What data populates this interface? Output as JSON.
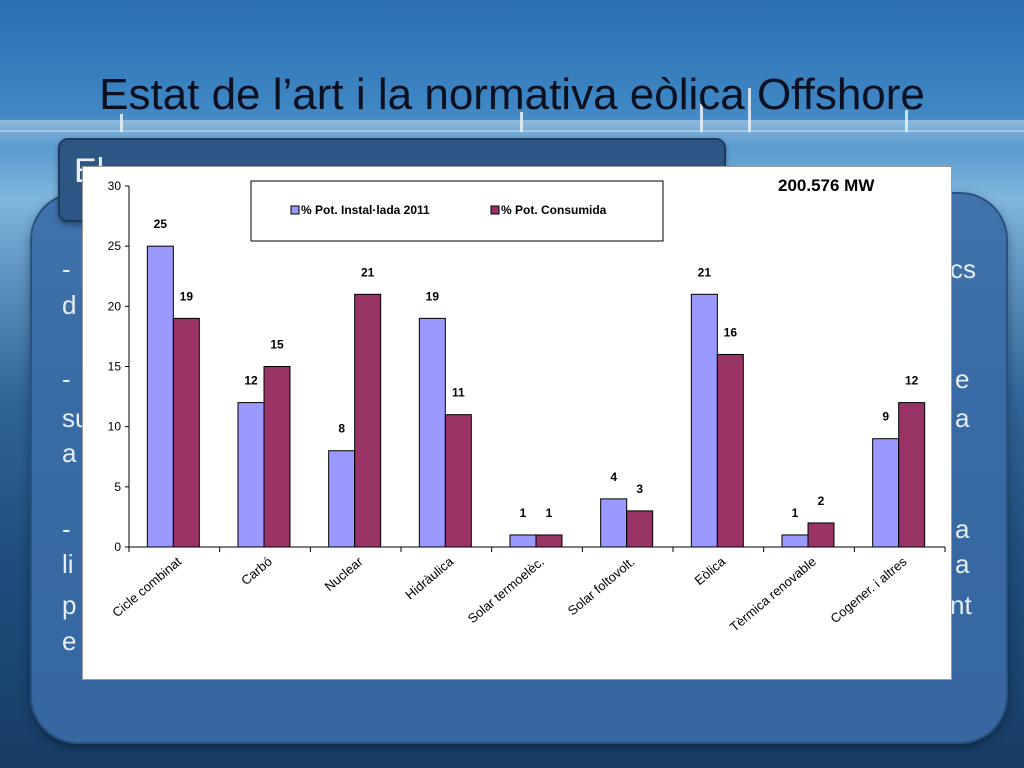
{
  "slide": {
    "title": "Estat de l’art i la normativa eòlica Offshore",
    "header_visible_text": "El",
    "body_fragments": [
      {
        "id": "l1",
        "text": "-"
      },
      {
        "id": "l2",
        "text": "d"
      },
      {
        "id": "l3",
        "text": "-"
      },
      {
        "id": "l4",
        "text": "su"
      },
      {
        "id": "l5",
        "text": "a"
      },
      {
        "id": "l6",
        "text": "-"
      },
      {
        "id": "l7",
        "text": "li"
      },
      {
        "id": "l8",
        "text": "p"
      },
      {
        "id": "l9",
        "text": "e"
      },
      {
        "id": "r1",
        "text": "cs"
      },
      {
        "id": "r2",
        "text": "e"
      },
      {
        "id": "r3",
        "text": "a"
      },
      {
        "id": "r4",
        "text": "a"
      },
      {
        "id": "r5",
        "text": "a"
      },
      {
        "id": "r6",
        "text": "nt"
      }
    ]
  },
  "colors": {
    "series1": "#9999ff",
    "series2": "#993366",
    "panel_bg": "#ffffff",
    "title_color": "#0a1020"
  },
  "chart_data": {
    "type": "bar",
    "annotation": "200.576 MW",
    "categories": [
      "Cicle combinat",
      "Carbó",
      "Nuclear",
      "Hidràulica",
      "Solar termoelèc.",
      "Solar foltovolt.",
      "Eòlica",
      "Tèrmica renovable",
      "Cogener. i altres"
    ],
    "series": [
      {
        "name": "% Pot. Instal·lada 2011",
        "values": [
          25,
          12,
          8,
          19,
          1,
          4,
          21,
          1,
          9
        ]
      },
      {
        "name": "% Pot. Consumida",
        "values": [
          19,
          15,
          21,
          11,
          1,
          3,
          16,
          2,
          12
        ]
      }
    ],
    "ylim": [
      0,
      30
    ],
    "yticks": [
      0,
      5,
      10,
      15,
      20,
      25,
      30
    ],
    "legend_position": "top-center",
    "grid": false
  }
}
